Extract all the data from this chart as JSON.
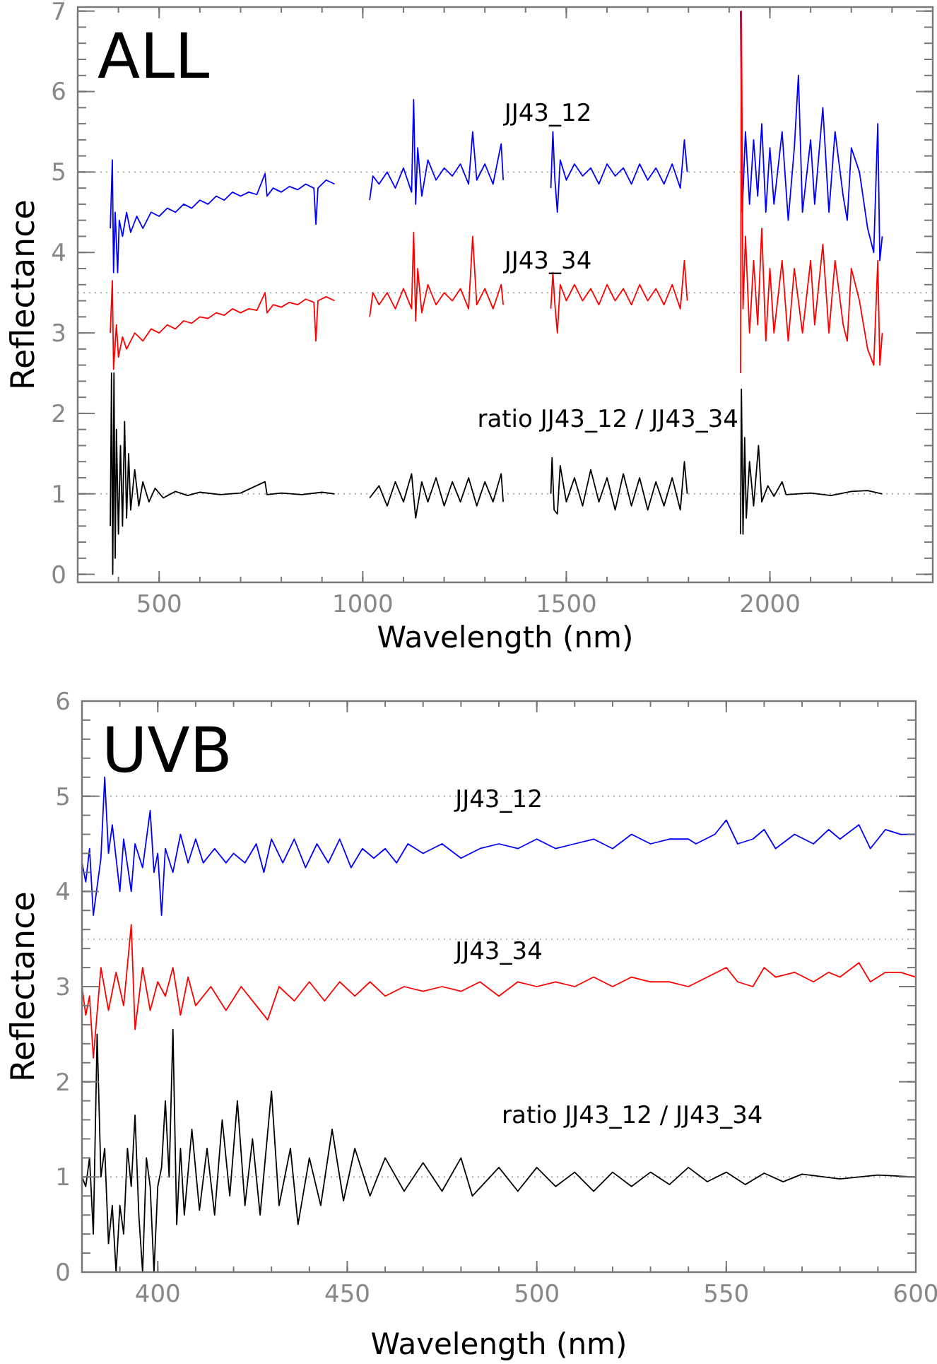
{
  "chart_data": [
    {
      "type": "line",
      "title": "ALL",
      "xlabel": "Wavelength (nm)",
      "ylabel": "Reflectance",
      "xlim": [
        300,
        2400
      ],
      "xticks": [
        500,
        1000,
        1500,
        2000
      ],
      "ylim": [
        -0.1,
        7.05
      ],
      "yticks": [
        0,
        1,
        2,
        3,
        4,
        5,
        6,
        7
      ],
      "ref_lines": [
        {
          "axis": "y",
          "value": 5,
          "color": "#b0b0b0",
          "line_style": "dotted"
        },
        {
          "axis": "y",
          "value": 3.5,
          "color": "#b0b0b0",
          "line_style": "dotted"
        },
        {
          "axis": "y",
          "value": 1,
          "color": "#b0b0b0",
          "line_style": "dotted"
        }
      ],
      "series": [
        {
          "name": "JJ43_12",
          "color": "#0000ff",
          "x": [
            380,
            385,
            388,
            392,
            398,
            402,
            410,
            420,
            430,
            445,
            460,
            480,
            500,
            520,
            540,
            560,
            580,
            600,
            620,
            640,
            660,
            680,
            700,
            720,
            740,
            760,
            765,
            780,
            800,
            820,
            840,
            860,
            880,
            885,
            890,
            910,
            931,
            970,
            1017,
            1025,
            1040,
            1060,
            1080,
            1100,
            1120,
            1125,
            1130,
            1135,
            1145,
            1160,
            1180,
            1200,
            1220,
            1240,
            1260,
            1270,
            1280,
            1300,
            1320,
            1340,
            1345,
            1400,
            1462,
            1467,
            1472,
            1478,
            1485,
            1500,
            1520,
            1540,
            1560,
            1580,
            1600,
            1620,
            1640,
            1660,
            1680,
            1700,
            1720,
            1740,
            1760,
            1780,
            1790,
            1797,
            1860,
            1928,
            1932,
            1940,
            1950,
            1960,
            1970,
            1980,
            1990,
            2000,
            2010,
            2030,
            2045,
            2060,
            2070,
            2080,
            2100,
            2110,
            2130,
            2145,
            2160,
            2180,
            2190,
            2200,
            2220,
            2240,
            2255,
            2265,
            2270,
            2276
          ],
          "values": [
            4.3,
            5.15,
            3.75,
            4.5,
            3.75,
            4.4,
            4.2,
            4.5,
            4.25,
            4.45,
            4.3,
            4.5,
            4.45,
            4.55,
            4.5,
            4.6,
            4.55,
            4.65,
            4.6,
            4.7,
            4.65,
            4.75,
            4.7,
            4.75,
            4.72,
            4.98,
            4.7,
            4.8,
            4.75,
            4.82,
            4.78,
            4.85,
            4.8,
            4.35,
            4.8,
            4.9,
            4.85,
            null,
            4.65,
            4.95,
            4.85,
            5.0,
            4.8,
            5.05,
            4.75,
            5.9,
            4.6,
            5.3,
            4.7,
            5.15,
            4.9,
            5.05,
            4.95,
            5.1,
            4.85,
            5.5,
            4.9,
            5.1,
            4.85,
            5.35,
            4.9,
            null,
            4.8,
            5.5,
            4.9,
            4.5,
            5.15,
            4.9,
            5.1,
            4.95,
            5.05,
            4.85,
            5.1,
            4.95,
            5.05,
            4.85,
            5.1,
            4.9,
            5.05,
            4.85,
            5.1,
            4.8,
            5.4,
            5.0,
            null,
            7.0,
            4.5,
            5.5,
            4.6,
            5.4,
            4.7,
            5.6,
            4.5,
            5.3,
            4.6,
            5.5,
            4.4,
            5.3,
            6.2,
            4.5,
            5.4,
            4.6,
            5.8,
            4.5,
            5.5,
            4.7,
            4.4,
            5.3,
            5.0,
            4.3,
            4.0,
            5.6,
            3.9,
            4.2
          ]
        },
        {
          "name": "JJ43_34",
          "color": "#ff0000",
          "x": [
            380,
            385,
            388,
            395,
            400,
            410,
            420,
            440,
            460,
            480,
            500,
            520,
            540,
            560,
            580,
            600,
            620,
            640,
            660,
            680,
            700,
            720,
            740,
            760,
            765,
            780,
            800,
            820,
            840,
            860,
            880,
            885,
            890,
            910,
            931,
            970,
            1017,
            1025,
            1040,
            1060,
            1080,
            1100,
            1120,
            1125,
            1130,
            1135,
            1145,
            1160,
            1180,
            1200,
            1220,
            1240,
            1260,
            1270,
            1280,
            1300,
            1320,
            1340,
            1345,
            1400,
            1462,
            1467,
            1472,
            1478,
            1485,
            1500,
            1520,
            1540,
            1560,
            1580,
            1600,
            1620,
            1640,
            1660,
            1680,
            1700,
            1720,
            1740,
            1760,
            1780,
            1790,
            1797,
            1860,
            1928,
            1930,
            1934,
            1940,
            1950,
            1960,
            1970,
            1980,
            1990,
            2000,
            2010,
            2030,
            2045,
            2060,
            2080,
            2100,
            2110,
            2130,
            2145,
            2160,
            2180,
            2190,
            2200,
            2220,
            2240,
            2255,
            2265,
            2270,
            2276
          ],
          "values": [
            3.0,
            3.65,
            2.55,
            3.1,
            2.7,
            2.95,
            2.8,
            3.0,
            2.9,
            3.05,
            3.0,
            3.1,
            3.05,
            3.15,
            3.12,
            3.2,
            3.18,
            3.25,
            3.22,
            3.3,
            3.25,
            3.3,
            3.28,
            3.5,
            3.25,
            3.35,
            3.32,
            3.38,
            3.35,
            3.42,
            3.38,
            2.9,
            3.4,
            3.45,
            3.4,
            null,
            3.2,
            3.5,
            3.35,
            3.5,
            3.3,
            3.55,
            3.3,
            4.25,
            3.15,
            3.8,
            3.25,
            3.6,
            3.35,
            3.5,
            3.4,
            3.55,
            3.3,
            4.2,
            3.35,
            3.55,
            3.3,
            3.6,
            3.35,
            null,
            3.3,
            3.75,
            3.35,
            3.0,
            3.6,
            3.4,
            3.6,
            3.4,
            3.55,
            3.35,
            3.6,
            3.4,
            3.55,
            3.35,
            3.6,
            3.4,
            3.55,
            3.35,
            3.6,
            3.3,
            3.9,
            3.4,
            null,
            2.5,
            7.0,
            3.3,
            4.2,
            3.0,
            3.9,
            3.1,
            4.3,
            2.9,
            3.8,
            3.0,
            3.9,
            2.9,
            3.8,
            3.0,
            3.9,
            3.1,
            4.1,
            3.0,
            3.9,
            3.1,
            2.9,
            3.8,
            3.4,
            2.8,
            2.6,
            3.9,
            2.6,
            3.0
          ]
        },
        {
          "name": "ratio JJ43_12 / JJ43_34",
          "color": "#000000",
          "x": [
            380,
            383,
            386,
            389,
            392,
            395,
            400,
            405,
            410,
            415,
            420,
            425,
            430,
            440,
            450,
            460,
            475,
            490,
            510,
            540,
            570,
            600,
            650,
            700,
            760,
            765,
            800,
            850,
            900,
            931,
            970,
            1017,
            1040,
            1060,
            1080,
            1100,
            1120,
            1130,
            1145,
            1160,
            1180,
            1200,
            1220,
            1240,
            1260,
            1280,
            1300,
            1320,
            1340,
            1345,
            1400,
            1462,
            1465,
            1470,
            1478,
            1485,
            1500,
            1520,
            1540,
            1560,
            1580,
            1600,
            1620,
            1640,
            1660,
            1680,
            1700,
            1720,
            1740,
            1760,
            1780,
            1790,
            1797,
            1860,
            1928,
            1930,
            1934,
            1938,
            1942,
            1950,
            1960,
            1972,
            1980,
            1995,
            2010,
            2030,
            2040,
            2100,
            2150,
            2200,
            2240,
            2276
          ],
          "values": [
            0.6,
            2.5,
            0,
            2.5,
            0.2,
            1.8,
            0.5,
            1.6,
            0.6,
            1.9,
            0.7,
            1.5,
            0.8,
            1.3,
            0.85,
            1.15,
            0.9,
            1.07,
            0.95,
            1.03,
            0.98,
            1.02,
            0.99,
            1.01,
            1.15,
            0.99,
            1.01,
            0.99,
            1.02,
            1.0,
            null,
            0.95,
            1.1,
            0.85,
            1.15,
            0.9,
            1.25,
            0.7,
            1.15,
            0.9,
            1.2,
            0.85,
            1.15,
            0.9,
            1.2,
            0.85,
            1.15,
            0.9,
            1.25,
            0.9,
            null,
            1.0,
            1.45,
            0.8,
            0.75,
            1.35,
            0.9,
            1.2,
            0.85,
            1.3,
            0.9,
            1.2,
            0.8,
            1.25,
            0.85,
            1.2,
            0.8,
            1.15,
            0.85,
            1.2,
            0.8,
            1.4,
            1.0,
            null,
            0.5,
            2.3,
            0.5,
            1.7,
            0.7,
            1.4,
            0.85,
            1.6,
            0.9,
            1.1,
            0.97,
            1.15,
            0.99,
            1.01,
            0.98,
            1.03,
            1.04,
            1.0
          ]
        }
      ]
    },
    {
      "type": "line",
      "title": "UVB",
      "xlabel": "Wavelength (nm)",
      "ylabel": "Reflectance",
      "xlim": [
        380,
        600
      ],
      "xticks": [
        400,
        450,
        500,
        550,
        600
      ],
      "ylim": [
        0,
        6
      ],
      "yticks": [
        0,
        1,
        2,
        3,
        4,
        5,
        6
      ],
      "ref_lines": [
        {
          "axis": "y",
          "value": 5,
          "color": "#b0b0b0",
          "line_style": "dotted"
        },
        {
          "axis": "y",
          "value": 3.5,
          "color": "#b0b0b0",
          "line_style": "dotted"
        },
        {
          "axis": "y",
          "value": 1,
          "color": "#b0b0b0",
          "line_style": "dotted"
        }
      ],
      "series": [
        {
          "name": "JJ43_12",
          "color": "#0000ff",
          "x": [
            380,
            381,
            382,
            383,
            385,
            386,
            387,
            388,
            390,
            391,
            393,
            394,
            396,
            398,
            399,
            400,
            401,
            402,
            404,
            406,
            408,
            410,
            412,
            415,
            418,
            420,
            423,
            426,
            428,
            430,
            433,
            436,
            439,
            442,
            445,
            448,
            451,
            454,
            457,
            460,
            463,
            466,
            470,
            475,
            480,
            485,
            490,
            495,
            500,
            505,
            510,
            515,
            520,
            525,
            530,
            535,
            540,
            542,
            547,
            550,
            553,
            557,
            560,
            563,
            568,
            573,
            577,
            580,
            585,
            588,
            592,
            596,
            600
          ],
          "values": [
            4.3,
            4.1,
            4.45,
            3.75,
            4.35,
            5.2,
            4.4,
            4.7,
            4.0,
            4.55,
            4.0,
            4.5,
            4.25,
            4.85,
            4.2,
            4.4,
            3.75,
            4.45,
            4.2,
            4.6,
            4.3,
            4.55,
            4.3,
            4.45,
            4.3,
            4.4,
            4.3,
            4.5,
            4.2,
            4.55,
            4.3,
            4.55,
            4.25,
            4.5,
            4.3,
            4.55,
            4.25,
            4.45,
            4.35,
            4.45,
            4.3,
            4.5,
            4.4,
            4.5,
            4.35,
            4.45,
            4.5,
            4.45,
            4.55,
            4.45,
            4.5,
            4.55,
            4.45,
            4.6,
            4.5,
            4.55,
            4.55,
            4.5,
            4.6,
            4.75,
            4.5,
            4.55,
            4.65,
            4.45,
            4.6,
            4.5,
            4.65,
            4.55,
            4.7,
            4.45,
            4.65,
            4.6,
            4.6
          ]
        },
        {
          "name": "JJ43_34",
          "color": "#ff0000",
          "x": [
            380,
            381,
            382,
            383,
            385,
            387,
            389,
            391,
            393,
            394,
            396,
            398,
            400,
            402,
            404,
            406,
            408,
            410,
            414,
            418,
            422,
            426,
            429,
            432,
            436,
            440,
            444,
            448,
            452,
            456,
            460,
            465,
            470,
            475,
            480,
            485,
            490,
            495,
            500,
            505,
            510,
            515,
            520,
            525,
            530,
            535,
            540,
            545,
            550,
            553,
            557,
            560,
            563,
            568,
            573,
            577,
            580,
            585,
            588,
            592,
            596,
            600
          ],
          "values": [
            3.0,
            2.7,
            2.9,
            2.25,
            3.2,
            2.75,
            3.15,
            2.8,
            3.65,
            2.55,
            3.2,
            2.75,
            3.05,
            2.9,
            3.2,
            2.7,
            3.1,
            2.8,
            3.0,
            2.75,
            3.0,
            2.8,
            2.65,
            3.0,
            2.85,
            3.05,
            2.85,
            3.05,
            2.9,
            3.05,
            2.9,
            3.0,
            2.95,
            3.0,
            2.95,
            3.05,
            2.9,
            3.05,
            3.0,
            3.05,
            3.0,
            3.1,
            3.0,
            3.1,
            3.05,
            3.05,
            3.0,
            3.1,
            3.2,
            3.05,
            3.0,
            3.2,
            3.1,
            3.15,
            3.05,
            3.15,
            3.1,
            3.25,
            3.05,
            3.15,
            3.15,
            3.1
          ]
        },
        {
          "name": "ratio JJ43_12 / JJ43_34",
          "color": "#000000",
          "x": [
            380,
            381,
            382,
            383,
            384,
            385,
            386,
            387,
            388,
            389,
            390,
            391,
            392,
            393,
            394,
            395,
            396,
            397,
            398,
            399,
            400,
            401,
            402,
            403,
            404,
            405,
            406,
            407,
            409,
            411,
            413,
            415,
            417,
            419,
            421,
            423,
            425,
            427,
            430,
            432,
            435,
            437,
            440,
            443,
            446,
            449,
            452,
            456,
            460,
            465,
            470,
            475,
            480,
            483,
            490,
            495,
            500,
            505,
            510,
            515,
            520,
            525,
            530,
            535,
            540,
            545,
            550,
            555,
            560,
            565,
            570,
            580,
            590,
            600
          ],
          "values": [
            1.0,
            0.9,
            1.2,
            0.4,
            2.5,
            1.0,
            1.3,
            0.3,
            0.7,
            0,
            0.7,
            0.4,
            1.3,
            0.9,
            1.65,
            0.6,
            0,
            1.2,
            0.9,
            0,
            0.9,
            1.1,
            1.8,
            1.0,
            2.55,
            0.5,
            1.3,
            0.6,
            1.5,
            0.65,
            1.3,
            0.6,
            1.6,
            0.8,
            1.8,
            0.7,
            1.4,
            0.6,
            1.9,
            0.7,
            1.3,
            0.5,
            1.2,
            0.7,
            1.5,
            0.75,
            1.3,
            0.8,
            1.2,
            0.85,
            1.15,
            0.85,
            1.2,
            0.8,
            1.1,
            0.85,
            1.1,
            0.9,
            1.05,
            0.85,
            1.05,
            0.9,
            1.05,
            0.92,
            1.1,
            0.95,
            1.05,
            0.92,
            1.04,
            0.95,
            1.03,
            0.98,
            1.02,
            1.0
          ]
        }
      ]
    }
  ]
}
